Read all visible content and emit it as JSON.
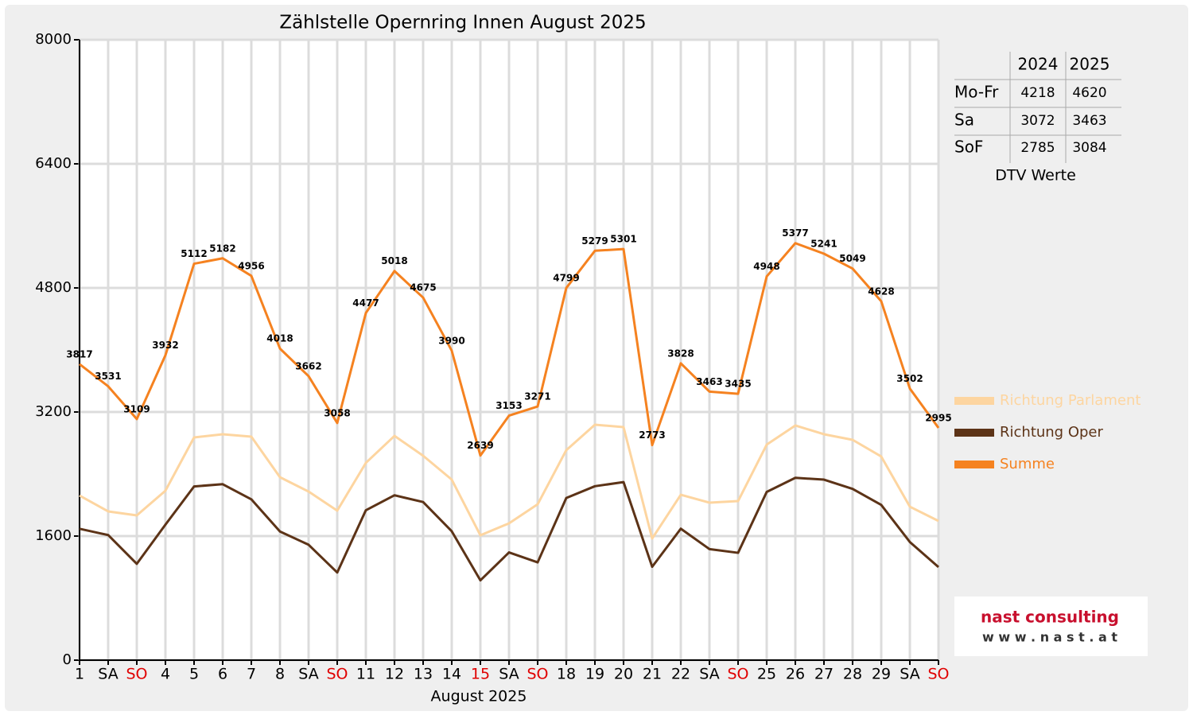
{
  "chart_data": {
    "type": "line",
    "title": "Zählstelle Opernring Innen August 2025",
    "x_label": "August 2025",
    "categories": [
      "1",
      "SA",
      "SO",
      "4",
      "5",
      "6",
      "7",
      "8",
      "SA",
      "SO",
      "11",
      "12",
      "13",
      "14",
      "15",
      "SA",
      "SO",
      "18",
      "19",
      "20",
      "21",
      "22",
      "SA",
      "SO",
      "25",
      "26",
      "27",
      "28",
      "29",
      "SA",
      "SO"
    ],
    "category_colors": [
      "#000000",
      "#000000",
      "#e00000",
      "#000000",
      "#000000",
      "#000000",
      "#000000",
      "#000000",
      "#000000",
      "#e00000",
      "#000000",
      "#000000",
      "#000000",
      "#000000",
      "#e00000",
      "#000000",
      "#e00000",
      "#000000",
      "#000000",
      "#000000",
      "#000000",
      "#000000",
      "#000000",
      "#e00000",
      "#000000",
      "#000000",
      "#000000",
      "#000000",
      "#000000",
      "#000000",
      "#e00000"
    ],
    "ylim": [
      0,
      8000
    ],
    "yticks": [
      0,
      1600,
      3200,
      4800,
      6400,
      8000
    ],
    "grid": true,
    "series": [
      {
        "name": "Richtung Parlament",
        "color": "#fdd5a0",
        "values": [
          2123,
          1918,
          1867,
          2185,
          2872,
          2913,
          2882,
          2359,
          2174,
          1928,
          2544,
          2892,
          2636,
          2328,
          1610,
          1764,
          2010,
          2708,
          3036,
          3005,
          1569,
          2133,
          2031,
          2051,
          2779,
          3026,
          2913,
          2841,
          2626,
          1979,
          1795
        ]
      },
      {
        "name": "Richtung Oper",
        "color": "#5c3317",
        "values": [
          1694,
          1613,
          1242,
          1747,
          2240,
          2269,
          2074,
          1659,
          1488,
          1130,
          1933,
          2126,
          2039,
          1662,
          1029,
          1389,
          1261,
          2091,
          2243,
          2296,
          1204,
          1695,
          1432,
          1384,
          2169,
          2351,
          2328,
          2208,
          2002,
          1523,
          1200
        ]
      },
      {
        "name": "Summe",
        "color": "#f58220",
        "show_labels": true,
        "values": [
          3817,
          3531,
          3109,
          3932,
          5112,
          5182,
          4956,
          4018,
          3662,
          3058,
          4477,
          5018,
          4675,
          3990,
          2639,
          3153,
          3271,
          4799,
          5279,
          5301,
          2773,
          3828,
          3463,
          3435,
          4948,
          5377,
          5241,
          5049,
          4628,
          3502,
          2995
        ]
      }
    ]
  },
  "dtv_table": {
    "columns": [
      "2024",
      "2025"
    ],
    "rows": [
      {
        "label": "Mo-Fr",
        "values": [
          4218,
          4620
        ]
      },
      {
        "label": "Sa",
        "values": [
          3072,
          3463
        ]
      },
      {
        "label": "SoF",
        "values": [
          2785,
          3084
        ]
      }
    ],
    "caption": "DTV Werte"
  },
  "logo": {
    "name": "nast consulting",
    "url": "w w w . n a s t . a t"
  }
}
